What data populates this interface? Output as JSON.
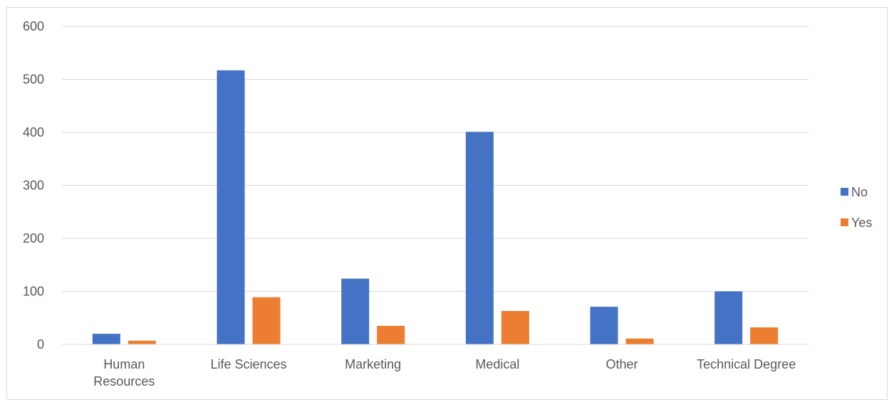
{
  "chart_data": {
    "type": "bar",
    "title": "",
    "xlabel": "",
    "ylabel": "",
    "categories": [
      [
        "Human",
        "Resources"
      ],
      [
        "Life Sciences"
      ],
      [
        "Marketing"
      ],
      [
        "Medical"
      ],
      [
        "Other"
      ],
      [
        "Technical Degree"
      ]
    ],
    "series": [
      {
        "name": "No",
        "color": "#4472C4",
        "values": [
          20,
          517,
          124,
          401,
          71,
          100
        ]
      },
      {
        "name": "Yes",
        "color": "#ED7D31",
        "values": [
          7,
          89,
          35,
          63,
          11,
          32
        ]
      }
    ],
    "ylim": [
      0,
      600
    ],
    "yticks": [
      0,
      100,
      200,
      300,
      400,
      500,
      600
    ],
    "grid": true,
    "legend_position": "right"
  }
}
